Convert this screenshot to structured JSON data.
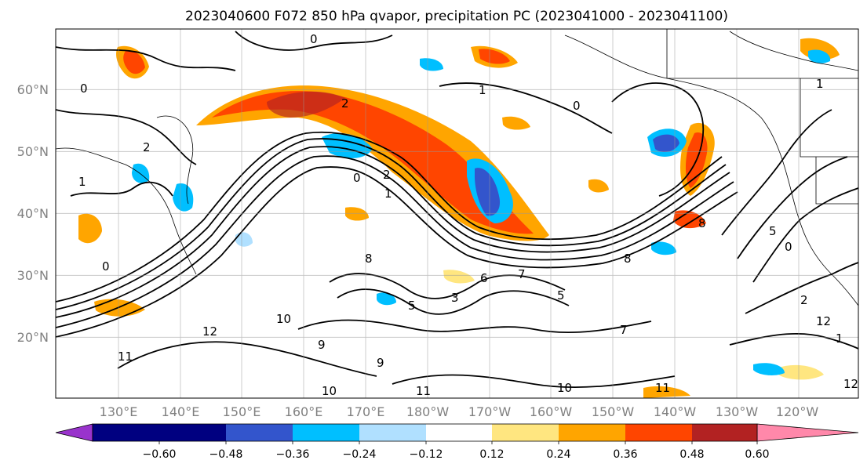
{
  "title": "2023040600 F072 850 hPa qvapor, precipitation PC (2023041000 - 2023041100)",
  "map": {
    "lat_labels": [
      "60°N",
      "50°N",
      "40°N",
      "30°N",
      "20°N"
    ],
    "lon_labels": [
      "130°E",
      "140°E",
      "150°E",
      "160°E",
      "170°E",
      "180°W",
      "170°W",
      "160°W",
      "150°W",
      "140°W",
      "130°W",
      "120°W"
    ],
    "contour_labels": [
      "0",
      "0",
      "0",
      "0",
      "1",
      "1",
      "2",
      "2",
      "1",
      "2",
      "0",
      "1",
      "5",
      "3",
      "7",
      "7",
      "8",
      "8",
      "8",
      "5",
      "12",
      "12",
      "10",
      "9",
      "11",
      "9",
      "10",
      "11",
      "10",
      "11",
      "12",
      "2",
      "1",
      "0",
      "6",
      "5"
    ]
  },
  "colorbar": {
    "ticks": [
      "−0.60",
      "−0.48",
      "−0.36",
      "−0.24",
      "−0.12",
      "0.12",
      "0.24",
      "0.36",
      "0.48",
      "0.60"
    ],
    "colors": [
      "#9933cc",
      "#000080",
      "#3355cc",
      "#00bfff",
      "#b0e0ff",
      "#ffffff",
      "#ffe680",
      "#ffa500",
      "#ff4500",
      "#b22222",
      "#ff88aa"
    ]
  }
}
